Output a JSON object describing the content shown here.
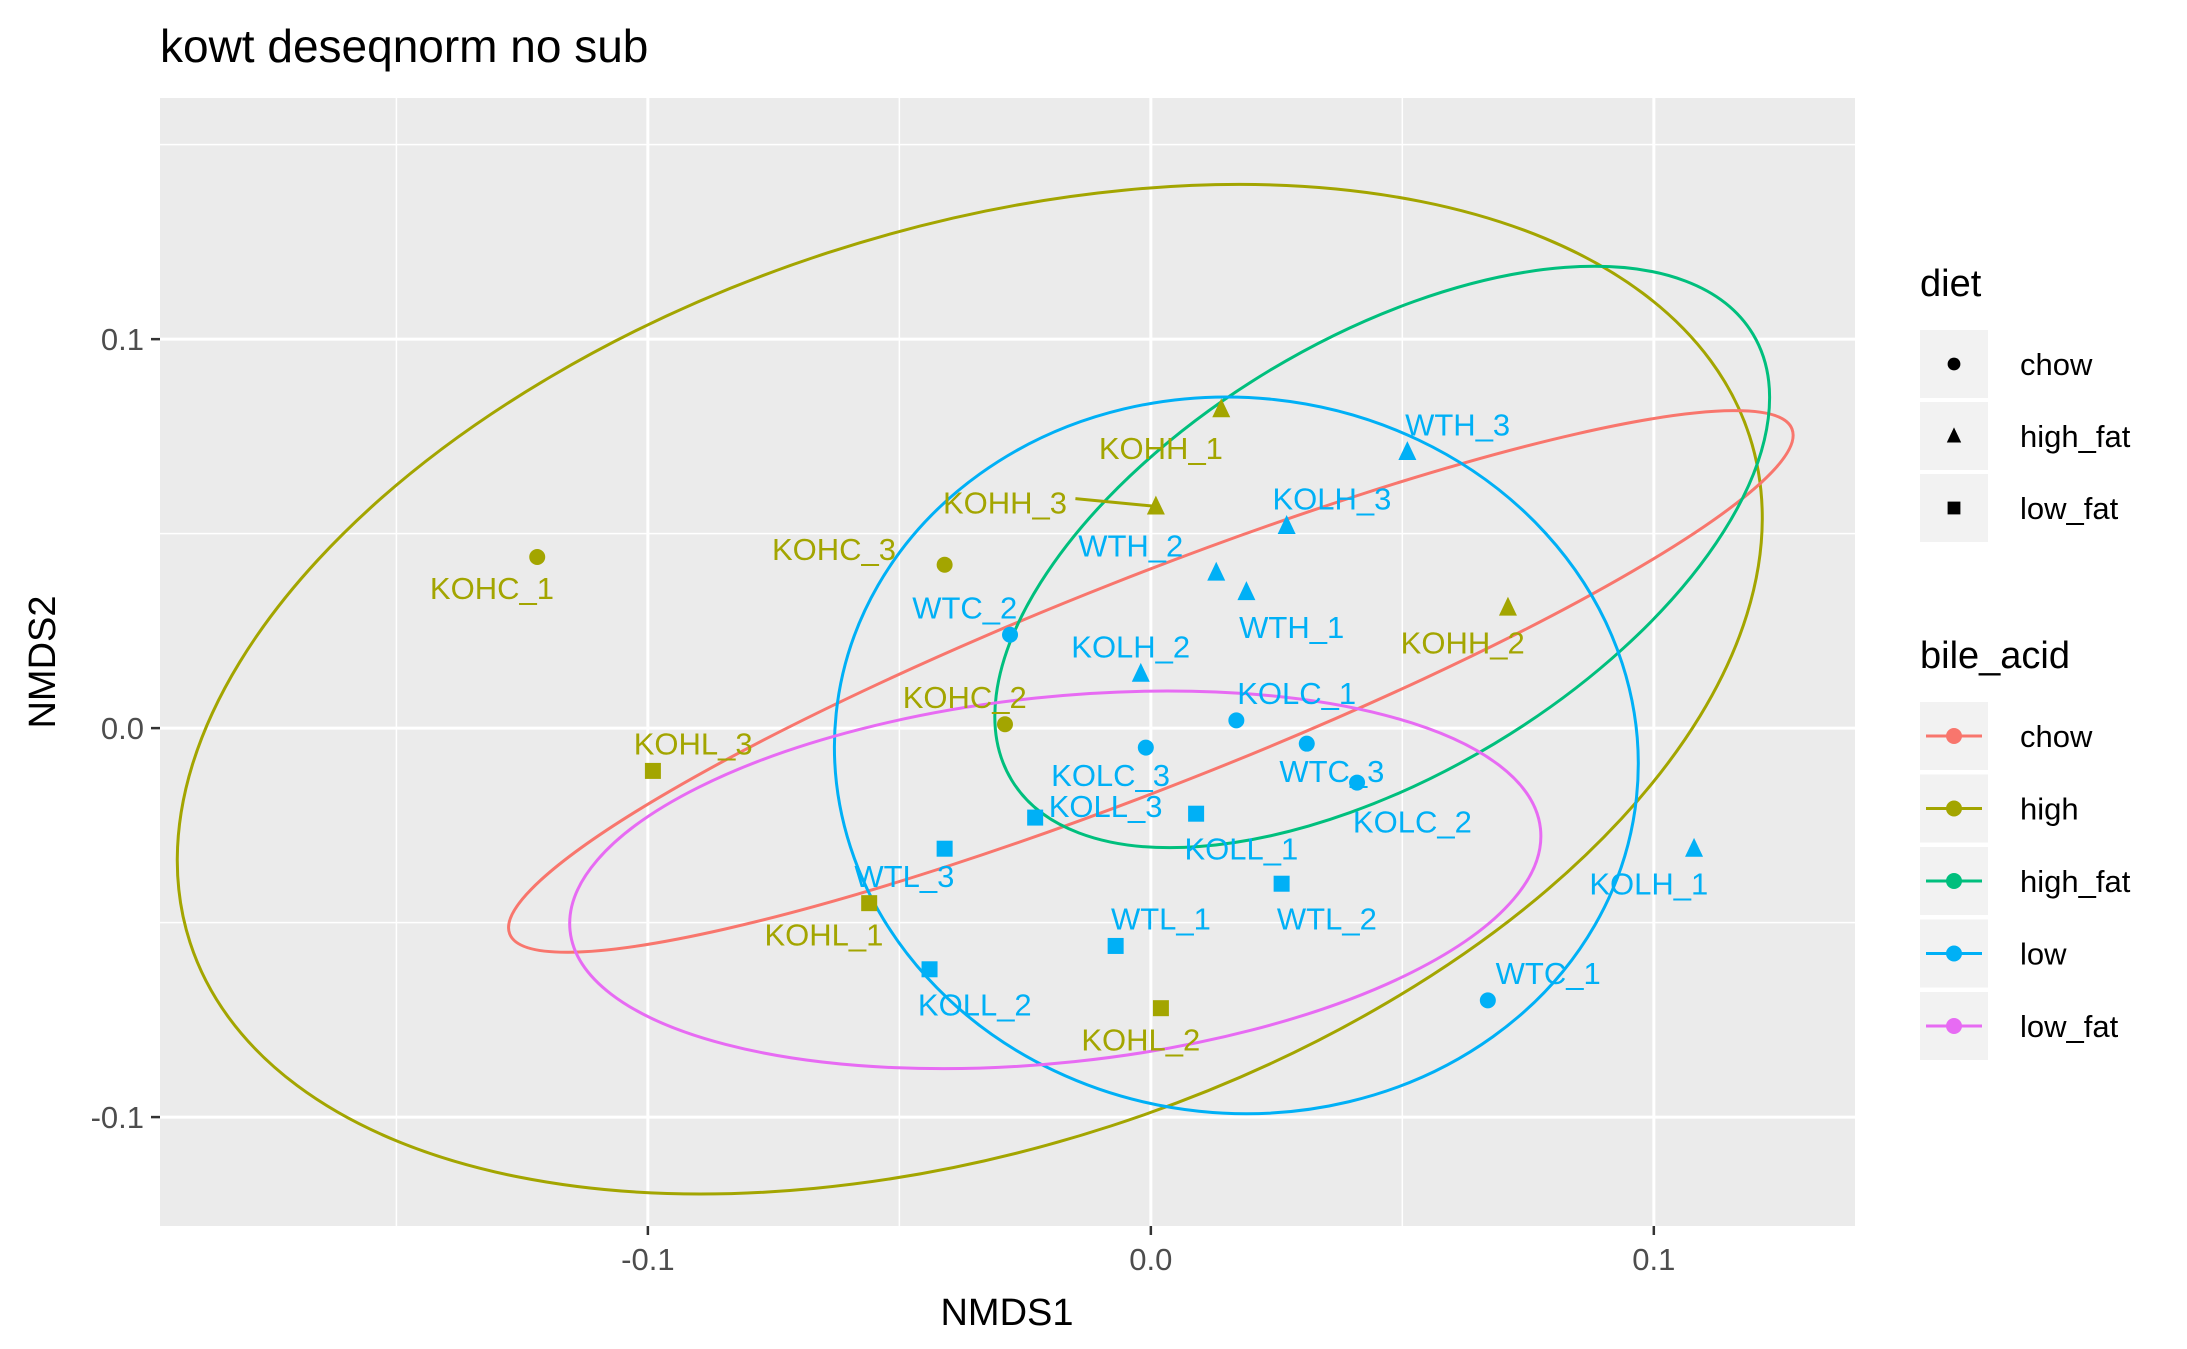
{
  "chart_data": {
    "type": "scatter",
    "title": "kowt deseqnorm no sub",
    "xlabel": "NMDS1",
    "ylabel": "NMDS2",
    "xlim": [
      -0.197,
      0.14
    ],
    "ylim": [
      -0.128,
      0.162
    ],
    "x_ticks": [
      -0.1,
      0.0,
      0.1
    ],
    "x_tick_labels": [
      "-0.1",
      "0.0",
      "0.1"
    ],
    "y_ticks": [
      0.1,
      0.0,
      -0.1
    ],
    "y_tick_labels": [
      "0.1",
      "0.0",
      "-0.1"
    ],
    "grid": true,
    "legend_position": "right",
    "legends": [
      {
        "title": "diet",
        "entries": [
          {
            "label": "chow",
            "shape": "circle"
          },
          {
            "label": "high_fat",
            "shape": "triangle"
          },
          {
            "label": "low_fat",
            "shape": "square"
          }
        ]
      },
      {
        "title": "bile_acid",
        "entries": [
          {
            "label": "chow",
            "color": "#F8766D"
          },
          {
            "label": "high",
            "color": "#A3A500"
          },
          {
            "label": "high_fat",
            "color": "#00BF7D"
          },
          {
            "label": "low",
            "color": "#00B0F6"
          },
          {
            "label": "low_fat",
            "color": "#E76BF3"
          }
        ]
      }
    ],
    "colors": {
      "chow": "#F8766D",
      "high": "#A3A500",
      "high_fat": "#00BF7D",
      "low": "#00B0F6",
      "low_fat": "#E76BF3"
    },
    "points": [
      {
        "label": "KOHC_1",
        "x": -0.122,
        "y": 0.044,
        "diet": "chow",
        "bile_acid": "high",
        "lx": -0.131,
        "ly": 0.036
      },
      {
        "label": "KOHC_3",
        "x": -0.041,
        "y": 0.042,
        "diet": "chow",
        "bile_acid": "high",
        "lx": -0.063,
        "ly": 0.046
      },
      {
        "label": "KOHC_2",
        "x": -0.029,
        "y": 0.001,
        "diet": "chow",
        "bile_acid": "high",
        "lx": -0.037,
        "ly": 0.008
      },
      {
        "label": "KOHH_1",
        "x": 0.014,
        "y": 0.082,
        "diet": "high_fat",
        "bile_acid": "high",
        "lx": 0.002,
        "ly": 0.072
      },
      {
        "label": "KOHH_3",
        "x": 0.001,
        "y": 0.057,
        "diet": "high_fat",
        "bile_acid": "high",
        "lx": -0.029,
        "ly": 0.058
      },
      {
        "label": "KOHH_2",
        "x": 0.071,
        "y": 0.031,
        "diet": "high_fat",
        "bile_acid": "high",
        "lx": 0.062,
        "ly": 0.022
      },
      {
        "label": "KOHL_3",
        "x": -0.099,
        "y": -0.011,
        "diet": "low_fat",
        "bile_acid": "high",
        "lx": -0.091,
        "ly": -0.004
      },
      {
        "label": "KOHL_1",
        "x": -0.056,
        "y": -0.045,
        "diet": "low_fat",
        "bile_acid": "high",
        "lx": -0.065,
        "ly": -0.053
      },
      {
        "label": "KOHL_2",
        "x": 0.002,
        "y": -0.072,
        "diet": "low_fat",
        "bile_acid": "high",
        "lx": -0.002,
        "ly": -0.08
      },
      {
        "label": "WTH_3",
        "x": 0.051,
        "y": 0.071,
        "diet": "high_fat",
        "bile_acid": "low",
        "lx": 0.061,
        "ly": 0.078
      },
      {
        "label": "KOLH_3",
        "x": 0.027,
        "y": 0.052,
        "diet": "high_fat",
        "bile_acid": "low",
        "lx": 0.036,
        "ly": 0.059
      },
      {
        "label": "WTH_2",
        "x": 0.013,
        "y": 0.04,
        "diet": "high_fat",
        "bile_acid": "low",
        "lx": -0.004,
        "ly": 0.047
      },
      {
        "label": "WTH_1",
        "x": 0.019,
        "y": 0.035,
        "diet": "high_fat",
        "bile_acid": "low",
        "lx": 0.028,
        "ly": 0.026
      },
      {
        "label": "KOLH_2",
        "x": -0.002,
        "y": 0.014,
        "diet": "high_fat",
        "bile_acid": "low",
        "lx": -0.004,
        "ly": 0.021
      },
      {
        "label": "KOLH_1",
        "x": 0.108,
        "y": -0.031,
        "diet": "high_fat",
        "bile_acid": "low",
        "lx": 0.099,
        "ly": -0.04
      },
      {
        "label": "WTC_2",
        "x": -0.028,
        "y": 0.024,
        "diet": "chow",
        "bile_acid": "low",
        "lx": -0.037,
        "ly": 0.031
      },
      {
        "label": "KOLC_1",
        "x": 0.017,
        "y": 0.002,
        "diet": "chow",
        "bile_acid": "low",
        "lx": 0.029,
        "ly": 0.009
      },
      {
        "label": "KOLC_3",
        "x": -0.001,
        "y": -0.005,
        "diet": "chow",
        "bile_acid": "low",
        "lx": -0.008,
        "ly": -0.012
      },
      {
        "label": "WTC_3",
        "x": 0.031,
        "y": -0.004,
        "diet": "chow",
        "bile_acid": "low",
        "lx": 0.036,
        "ly": -0.011
      },
      {
        "label": "KOLC_2",
        "x": 0.041,
        "y": -0.014,
        "diet": "chow",
        "bile_acid": "low",
        "lx": 0.052,
        "ly": -0.024
      },
      {
        "label": "WTC_1",
        "x": 0.067,
        "y": -0.07,
        "diet": "chow",
        "bile_acid": "low",
        "lx": 0.079,
        "ly": -0.063
      },
      {
        "label": "KOLL_3",
        "x": -0.023,
        "y": -0.023,
        "diet": "low_fat",
        "bile_acid": "low",
        "lx": -0.009,
        "ly": -0.02
      },
      {
        "label": "KOLL_1",
        "x": 0.009,
        "y": -0.022,
        "diet": "low_fat",
        "bile_acid": "low",
        "lx": 0.018,
        "ly": -0.031
      },
      {
        "label": "WTL_3",
        "x": -0.041,
        "y": -0.031,
        "diet": "low_fat",
        "bile_acid": "low",
        "lx": -0.049,
        "ly": -0.038
      },
      {
        "label": "WTL_2",
        "x": 0.026,
        "y": -0.04,
        "diet": "low_fat",
        "bile_acid": "low",
        "lx": 0.035,
        "ly": -0.049
      },
      {
        "label": "WTL_1",
        "x": -0.007,
        "y": -0.056,
        "diet": "low_fat",
        "bile_acid": "low",
        "lx": 0.002,
        "ly": -0.049
      },
      {
        "label": "KOLL_2",
        "x": -0.044,
        "y": -0.062,
        "diet": "low_fat",
        "bile_acid": "low",
        "lx": -0.035,
        "ly": -0.071
      }
    ],
    "connectors": [
      {
        "label": "KOHH_3",
        "from": [
          -0.015,
          0.059
        ],
        "to": [
          0.001,
          0.057
        ],
        "bile_acid": "high"
      }
    ],
    "ellipses": [
      {
        "group": "high",
        "cx": -0.036,
        "cy": 0.01,
        "rx": 0.163,
        "ry": 0.118,
        "angle_deg": -18
      },
      {
        "group": "chow",
        "cx": 0.0,
        "cy": 0.012,
        "rx": 0.137,
        "ry": 0.027,
        "angle_deg": -21.5
      },
      {
        "group": "high_fat",
        "cx": 0.046,
        "cy": 0.044,
        "rx": 0.086,
        "ry": 0.056,
        "angle_deg": -31
      },
      {
        "group": "low",
        "cx": 0.017,
        "cy": -0.007,
        "rx": 0.08,
        "ry": 0.092,
        "angle_deg": 6
      },
      {
        "group": "low_fat",
        "cx": -0.019,
        "cy": -0.039,
        "rx": 0.097,
        "ry": 0.047,
        "angle_deg": -6
      }
    ]
  }
}
